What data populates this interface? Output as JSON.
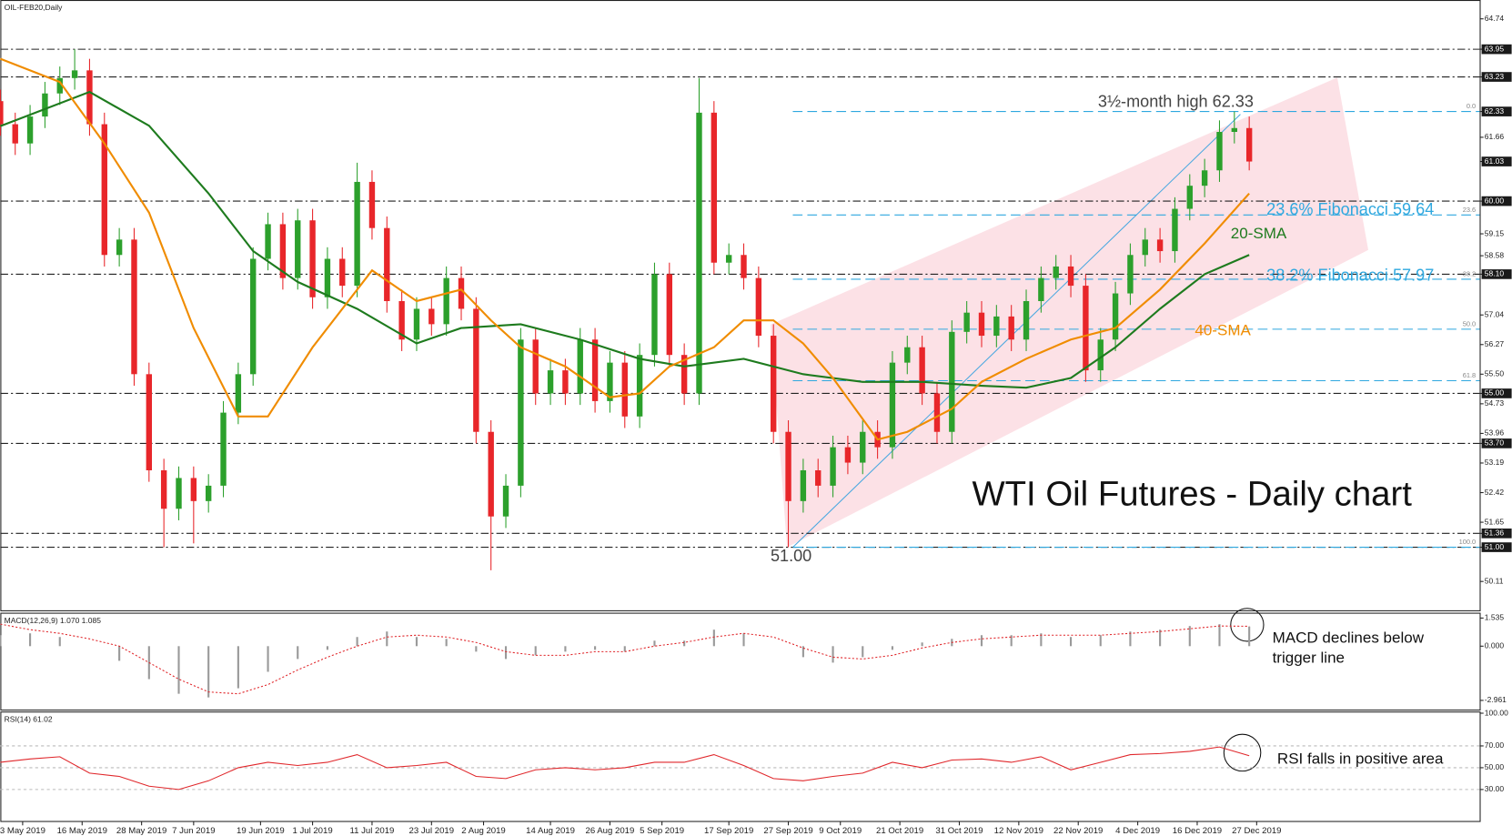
{
  "chart_data": [
    {
      "type": "candlestick",
      "symbol": "OIL-FEB20,Daily",
      "title": "WTI Oil Futures - Daily chart",
      "x": [
        0,
        2,
        4,
        6,
        8,
        10,
        12,
        14,
        16,
        18,
        20,
        22,
        24,
        26,
        28,
        30,
        32,
        34,
        36,
        38,
        40,
        42,
        44,
        46,
        48,
        50,
        52,
        54,
        56,
        58,
        60,
        62,
        64,
        66,
        68,
        70,
        72,
        74,
        76,
        78,
        80,
        82,
        84,
        86,
        88,
        90,
        92,
        94,
        96,
        98,
        100,
        102,
        104,
        106,
        108,
        110,
        112,
        114,
        116,
        118,
        120,
        122,
        124,
        126,
        128,
        130,
        132,
        134,
        136,
        138,
        140,
        142,
        144,
        146,
        148,
        150,
        152,
        154,
        156,
        158,
        160,
        162,
        164,
        166,
        168
      ],
      "open": [
        62.6,
        62.0,
        61.5,
        62.2,
        62.8,
        63.2,
        63.4,
        62.0,
        58.6,
        59.0,
        55.5,
        53.0,
        52.0,
        52.8,
        52.2,
        52.6,
        54.5,
        55.5,
        58.5,
        59.4,
        58.0,
        59.5,
        57.5,
        58.5,
        57.8,
        60.5,
        59.3,
        57.4,
        56.4,
        57.2,
        56.8,
        58.0,
        57.2,
        54.0,
        51.8,
        52.6,
        56.4,
        55.0,
        55.6,
        55.0,
        56.4,
        54.8,
        55.8,
        54.4,
        56.0,
        58.1,
        56.0,
        55.0,
        62.3,
        58.4,
        58.6,
        58.0,
        56.5,
        54.0,
        52.2,
        53.0,
        52.6,
        53.6,
        53.2,
        54.0,
        53.6,
        55.8,
        56.2,
        55.0,
        54.0,
        56.6,
        57.1,
        56.5,
        57.0,
        56.4,
        57.4,
        58.0,
        58.3,
        57.8,
        55.6,
        56.4,
        57.6,
        58.6,
        59.0,
        58.7,
        59.8,
        60.4,
        60.8,
        61.8,
        61.9
      ],
      "high": [
        62.9,
        62.3,
        62.5,
        63.1,
        63.5,
        63.95,
        63.7,
        62.3,
        59.3,
        59.3,
        55.8,
        53.3,
        53.1,
        53.1,
        52.9,
        54.8,
        55.8,
        58.8,
        59.7,
        59.7,
        59.8,
        59.8,
        58.8,
        58.8,
        61.0,
        60.8,
        59.6,
        57.7,
        57.5,
        57.5,
        58.3,
        58.3,
        57.5,
        54.3,
        52.9,
        56.7,
        56.7,
        55.9,
        55.9,
        56.7,
        56.7,
        56.1,
        56.1,
        56.3,
        58.4,
        58.4,
        56.3,
        63.2,
        62.6,
        58.9,
        58.9,
        58.3,
        56.8,
        54.3,
        53.3,
        53.3,
        53.9,
        53.9,
        54.3,
        54.3,
        56.1,
        56.5,
        56.5,
        55.3,
        56.9,
        57.4,
        57.4,
        57.3,
        57.3,
        57.7,
        58.3,
        58.6,
        58.6,
        58.1,
        56.7,
        57.9,
        58.9,
        59.3,
        59.3,
        60.1,
        60.7,
        61.1,
        62.1,
        62.33,
        62.2
      ],
      "low": [
        61.7,
        61.2,
        61.2,
        61.9,
        62.5,
        62.9,
        61.7,
        58.3,
        58.3,
        55.2,
        52.7,
        51.0,
        51.7,
        51.1,
        51.9,
        52.3,
        54.2,
        55.2,
        58.2,
        57.7,
        57.7,
        57.2,
        57.2,
        57.5,
        57.5,
        59.0,
        57.1,
        56.1,
        56.1,
        56.5,
        56.5,
        56.9,
        53.7,
        50.4,
        51.5,
        52.3,
        54.7,
        54.7,
        54.7,
        54.7,
        54.5,
        54.5,
        54.1,
        54.1,
        55.7,
        55.7,
        54.7,
        54.7,
        58.1,
        58.1,
        57.7,
        56.2,
        53.7,
        51.0,
        51.9,
        52.3,
        52.3,
        52.9,
        52.9,
        53.3,
        53.3,
        55.5,
        54.7,
        53.7,
        53.7,
        56.3,
        56.2,
        56.2,
        56.1,
        56.1,
        57.1,
        57.7,
        57.5,
        55.3,
        55.3,
        56.1,
        57.3,
        58.3,
        58.4,
        58.4,
        59.5,
        60.1,
        60.5,
        61.5,
        60.8
      ],
      "close": [
        62.0,
        61.5,
        62.2,
        62.8,
        63.2,
        63.4,
        62.0,
        58.6,
        59.0,
        55.5,
        53.0,
        52.0,
        52.8,
        52.2,
        52.6,
        54.5,
        55.5,
        58.5,
        59.4,
        58.0,
        59.5,
        57.5,
        58.5,
        57.8,
        60.5,
        59.3,
        57.4,
        56.4,
        57.2,
        56.8,
        58.0,
        57.2,
        54.0,
        51.8,
        52.6,
        56.4,
        55.0,
        55.6,
        55.0,
        56.4,
        54.8,
        55.8,
        54.4,
        56.0,
        58.1,
        56.0,
        55.0,
        62.3,
        58.4,
        58.6,
        58.0,
        56.5,
        54.0,
        52.2,
        53.0,
        52.6,
        53.6,
        53.2,
        54.0,
        53.6,
        55.8,
        56.2,
        55.0,
        54.0,
        56.6,
        57.1,
        56.5,
        57.0,
        56.4,
        57.4,
        58.0,
        58.3,
        57.8,
        55.6,
        56.4,
        57.6,
        58.6,
        59.0,
        58.7,
        59.8,
        60.4,
        60.8,
        61.8,
        61.9,
        61.03
      ],
      "up_color": "#2ca02c",
      "down_color": "#e8262a",
      "series": [
        {
          "name": "20-SMA",
          "color": "#1e7b1e",
          "x": [
            0,
            12,
            20,
            28,
            34,
            40,
            48,
            56,
            62,
            70,
            78,
            86,
            92,
            100,
            108,
            116,
            124,
            132,
            138,
            144,
            150,
            156,
            162,
            168
          ],
          "values": [
            61.95,
            62.84,
            61.96,
            60.2,
            58.7,
            57.9,
            57.2,
            56.3,
            56.7,
            56.8,
            56.4,
            55.9,
            55.7,
            55.9,
            55.5,
            55.3,
            55.3,
            55.2,
            55.15,
            55.4,
            56.2,
            57.2,
            58.1,
            58.6
          ]
        },
        {
          "name": "40-SMA",
          "color": "#f08c00",
          "x": [
            0,
            8,
            14,
            20,
            26,
            32,
            36,
            42,
            50,
            56,
            62,
            66,
            70,
            76,
            82,
            86,
            90,
            96,
            100,
            104,
            108,
            112,
            118,
            122,
            128,
            132,
            138,
            144,
            150,
            156,
            162,
            168
          ],
          "values": [
            63.7,
            63.1,
            61.5,
            59.7,
            56.7,
            54.4,
            54.4,
            56.2,
            58.2,
            57.4,
            57.7,
            56.9,
            56.2,
            55.7,
            54.9,
            55.0,
            55.7,
            56.2,
            56.9,
            56.9,
            56.3,
            55.4,
            53.8,
            54.0,
            54.6,
            55.3,
            55.9,
            56.4,
            56.7,
            57.7,
            58.9,
            60.2
          ]
        }
      ],
      "levels": [
        63.95,
        63.23,
        60,
        58.1,
        55,
        53.7,
        51.36,
        51
      ],
      "fib_levels": [
        {
          "value": 62.33,
          "label": "0.0"
        },
        {
          "value": 59.64,
          "label": "23.6"
        },
        {
          "value": 57.97,
          "label": "38.2"
        },
        {
          "value": 56.67,
          "label": "50.0"
        },
        {
          "value": 55.33,
          "label": "61.8"
        },
        {
          "value": 51,
          "label": "100.0"
        }
      ],
      "annotations": [
        "3½-month high 62.33",
        "23.6% Fibonacci 59.64",
        "38.2% Fibonacci 57.97",
        "51.00"
      ],
      "xlim": [
        0,
        199
      ],
      "xticks": [
        {
          "value": 3,
          "label": "3 May 2019"
        },
        {
          "value": 11,
          "label": "16 May 2019"
        },
        {
          "value": 19,
          "label": "28 May 2019"
        },
        {
          "value": 26,
          "label": "7 Jun 2019"
        },
        {
          "value": 35,
          "label": "19 Jun 2019"
        },
        {
          "value": 42,
          "label": "1 Jul 2019"
        },
        {
          "value": 50,
          "label": "11 Jul 2019"
        },
        {
          "value": 58,
          "label": "23 Jul 2019"
        },
        {
          "value": 65,
          "label": "2 Aug 2019"
        },
        {
          "value": 74,
          "label": "14 Aug 2019"
        },
        {
          "value": 82,
          "label": "26 Aug 2019"
        },
        {
          "value": 89,
          "label": "5 Sep 2019"
        },
        {
          "value": 98,
          "label": "17 Sep 2019"
        },
        {
          "value": 106,
          "label": "27 Sep 2019"
        },
        {
          "value": 113,
          "label": "9 Oct 2019"
        },
        {
          "value": 121,
          "label": "21 Oct 2019"
        },
        {
          "value": 129,
          "label": "31 Oct 2019"
        },
        {
          "value": 137,
          "label": "12 Nov 2019"
        },
        {
          "value": 145,
          "label": "22 Nov 2019"
        },
        {
          "value": 153,
          "label": "4 Dec 2019"
        },
        {
          "value": 161,
          "label": "16 Dec 2019"
        },
        {
          "value": 169,
          "label": "27 Dec 2019"
        }
      ],
      "ylim": [
        49.36,
        65.23
      ],
      "yticks": [
        64.74,
        63.95,
        63.23,
        62.33,
        61.66,
        61.03,
        {
          "value": 60,
          "label": "60.00"
        },
        59.15,
        58.58,
        {
          "value": 58.1,
          "label": "58.10"
        },
        57.04,
        56.27,
        {
          "value": 55.5,
          "label": "55.50"
        },
        {
          "value": 55,
          "label": "55.00"
        },
        54.73,
        53.96,
        {
          "value": 53.7,
          "label": "53.70"
        },
        53.19,
        52.42,
        51.65,
        51.36,
        {
          "value": 51,
          "label": "51.00"
        },
        50.11
      ]
    },
    {
      "type": "macd",
      "title": "MACD(12,26,9) 1.070 1.085",
      "x": [
        0,
        4,
        8,
        12,
        16,
        20,
        24,
        28,
        32,
        36,
        40,
        44,
        48,
        52,
        56,
        60,
        64,
        68,
        72,
        76,
        80,
        84,
        88,
        92,
        96,
        100,
        104,
        108,
        112,
        116,
        120,
        124,
        128,
        132,
        136,
        140,
        144,
        148,
        152,
        156,
        160,
        164,
        168
      ],
      "series": [
        {
          "color": "#9a9a9a",
          "values": [
            0.6,
            0.7,
            0.5,
            0.0,
            -0.8,
            -1.8,
            -2.6,
            -2.8,
            -2.3,
            -1.4,
            -0.7,
            -0.2,
            0.5,
            0.8,
            0.5,
            0.4,
            -0.3,
            -0.7,
            -0.5,
            -0.3,
            -0.2,
            -0.3,
            0.3,
            0.3,
            0.9,
            0.7,
            0.0,
            -0.6,
            -0.9,
            -0.6,
            -0.2,
            0.2,
            0.4,
            0.6,
            0.6,
            0.7,
            0.5,
            0.6,
            0.8,
            0.9,
            1.1,
            1.2,
            1.07
          ]
        },
        {
          "color": "#e0262a",
          "values": [
            1.2,
            0.9,
            0.7,
            0.4,
            0.0,
            -0.9,
            -1.8,
            -2.5,
            -2.6,
            -2.1,
            -1.3,
            -0.6,
            0.0,
            0.5,
            0.6,
            0.5,
            0.2,
            -0.3,
            -0.5,
            -0.5,
            -0.3,
            -0.3,
            0.0,
            0.2,
            0.5,
            0.7,
            0.5,
            -0.1,
            -0.6,
            -0.7,
            -0.5,
            -0.1,
            0.2,
            0.4,
            0.5,
            0.6,
            0.6,
            0.6,
            0.7,
            0.8,
            0.95,
            1.1,
            1.085
          ]
        }
      ],
      "annotation": [
        "MACD declines below",
        "trigger line"
      ],
      "ylim": [
        -3.49,
        1.8
      ],
      "yticks": [
        1.535,
        {
          "value": 0,
          "label": "0.000"
        },
        -2.961
      ]
    },
    {
      "type": "line",
      "title": "RSI(14) 61.02",
      "x": [
        0,
        4,
        8,
        12,
        16,
        20,
        24,
        28,
        32,
        36,
        40,
        44,
        48,
        52,
        56,
        60,
        64,
        68,
        72,
        76,
        80,
        84,
        88,
        92,
        96,
        100,
        104,
        108,
        112,
        116,
        120,
        124,
        128,
        132,
        136,
        140,
        144,
        148,
        152,
        156,
        160,
        164,
        168
      ],
      "values": [
        55,
        58,
        60,
        45,
        42,
        33,
        30,
        38,
        50,
        55,
        52,
        55,
        62,
        50,
        52,
        55,
        42,
        40,
        48,
        50,
        48,
        50,
        55,
        55,
        62,
        52,
        40,
        38,
        42,
        45,
        55,
        50,
        57,
        58,
        55,
        60,
        48,
        55,
        62,
        63,
        65,
        69,
        61
      ],
      "color": "#e0262a",
      "annotation": "RSI falls in positive area",
      "ylim": [
        0.67,
        101.1
      ],
      "yticks": [
        {
          "value": 100,
          "label": "100.00"
        },
        {
          "value": 70,
          "label": "70.00"
        },
        {
          "value": 50,
          "label": "50.00"
        },
        {
          "value": 30,
          "label": "30.00"
        }
      ]
    }
  ]
}
